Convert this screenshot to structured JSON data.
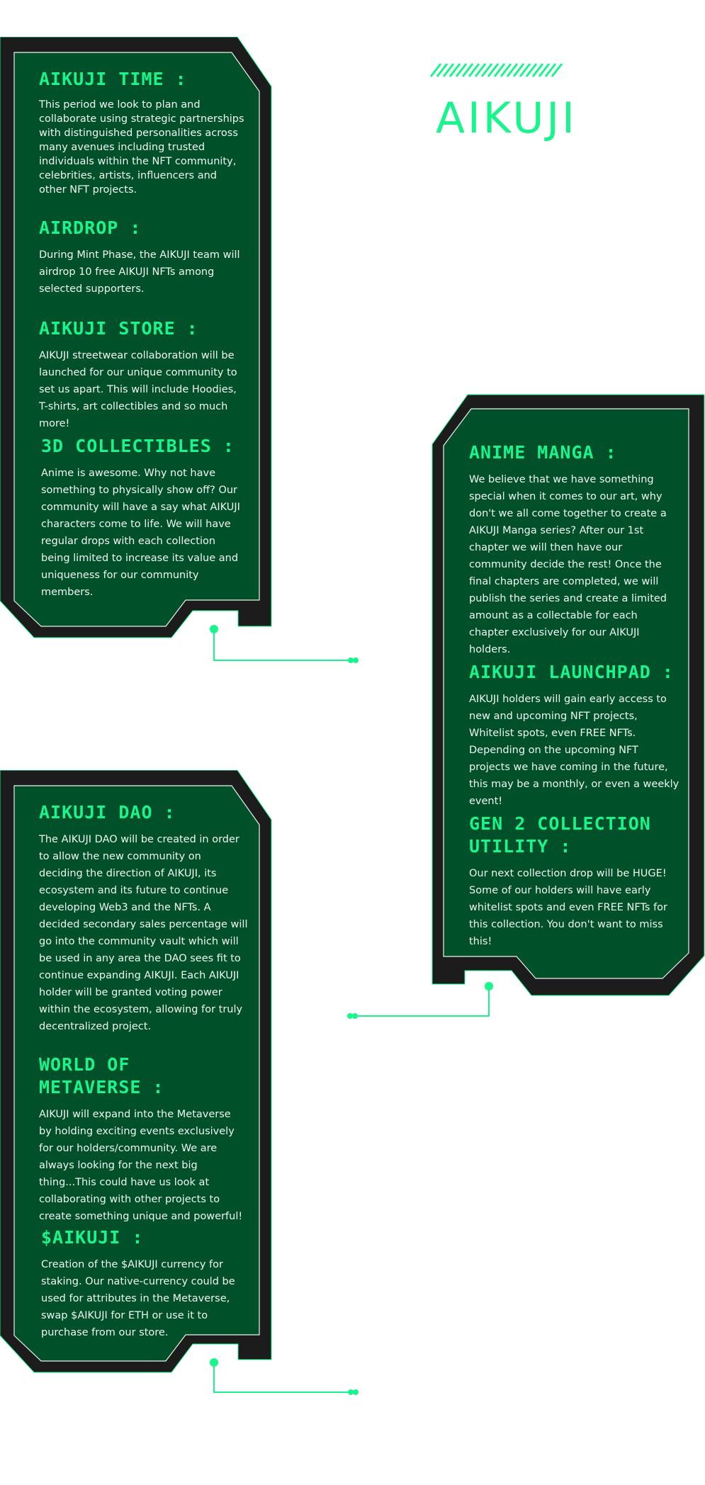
{
  "brand": {
    "logo_text": "AIKUJI"
  },
  "colors": {
    "accent": "#19f58c",
    "panel": "#005129",
    "frame": "#1c1c1c",
    "background": "#ffffff"
  },
  "panel_one": {
    "sections": [
      {
        "title": "AIKUJI TIME :",
        "body": "This period we look to plan and collaborate using strategic partnerships with distinguished personalities across many avenues including trusted individuals within the NFT community, celebrities, artists, influencers and other NFT projects."
      },
      {
        "title": "AIRDROP :",
        "body": "During Mint Phase, the AIKUJI team will airdrop 10 free AIKUJI NFTs among selected supporters."
      },
      {
        "title": "AIKUJI STORE :",
        "body": "AIKUJI streetwear collaboration will be launched for our unique community to set us apart. This will include Hoodies, T-shirts, art collectibles and so much more!"
      },
      {
        "title": "3D COLLECTIBLES :",
        "body": "Anime is awesome. Why not have something to physically show off? Our community will have a say what AIKUJI characters come to life. We will have regular drops with each collection being limited to increase its value and uniqueness for our community members."
      }
    ]
  },
  "panel_two": {
    "sections": [
      {
        "title": "ANIME MANGA :",
        "body": "We believe that we have something special when it comes to our art, why don't we all come together to create a AIKUJI Manga series? After our 1st chapter we will then have our community decide the rest! Once the final chapters are completed, we will publish the series and create a limited amount as a collectable for each chapter exclusively for our AIKUJI holders."
      },
      {
        "title": "AIKUJI LAUNCHPAD :",
        "body": "AIKUJI holders will gain early access to new and upcoming NFT projects, Whitelist spots, even FREE NFTs. Depending on the upcoming NFT projects we have coming in the future, this may be a monthly, or even a weekly event!"
      },
      {
        "title": "GEN 2 COLLECTION UTILITY :",
        "body": "Our next collection drop will be HUGE! Some of our holders will have early whitelist spots and even FREE NFTs for this collection. You don't want to miss this!"
      }
    ]
  },
  "panel_three": {
    "sections": [
      {
        "title": "AIKUJI DAO :",
        "body": "The AIKUJI DAO will be created in order to allow the new community on deciding the direction of AIKUJI, its ecosystem and its future to continue developing Web3 and the NFTs. A decided secondary sales percentage will go into the community vault which will be used in any area the DAO sees fit to continue expanding AIKUJI. Each AIKUJI holder will be granted voting power within the ecosystem, allowing for truly decentralized project."
      },
      {
        "title": "WORLD OF METAVERSE :",
        "body": "AIKUJI will expand into the Metaverse by holding exciting events exclusively for our holders/community. We are always looking for the next big thing...This could have us look at collaborating with other projects to create something unique and powerful!"
      },
      {
        "title": "$AIKUJI :",
        "body": "Creation of the $AIKUJI currency for staking. Our native-currency could be used for attributes in the Metaverse, swap $AIKUJI for ETH or use it to purchase from our store."
      }
    ]
  }
}
